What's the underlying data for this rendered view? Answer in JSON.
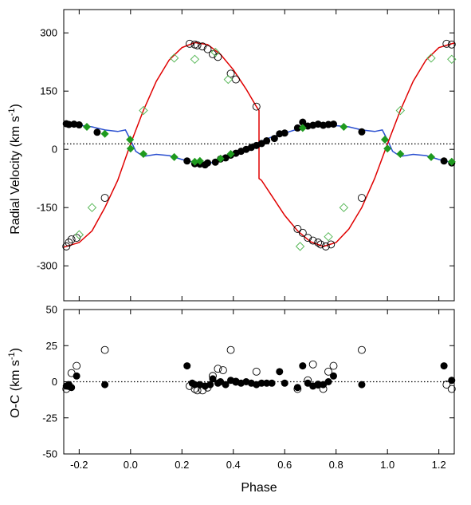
{
  "chart_data": [
    {
      "type": "line",
      "panel": "top",
      "ylabel_main": "Radial Velocity (km s",
      "ylabel_sup": "-1",
      "ylabel_close": ")",
      "xlim": [
        -0.26,
        1.26
      ],
      "ylim": [
        -390,
        360
      ],
      "xticks": [
        -0.2,
        0.0,
        0.2,
        0.4,
        0.6,
        0.8,
        1.0,
        1.2
      ],
      "xtick_labels": [],
      "yticks": [
        -300,
        -150,
        0,
        150,
        300
      ],
      "ytick_labels": [
        "-300",
        "-150",
        "0",
        "150",
        "300"
      ],
      "systemic_velocity": 14,
      "grid": false,
      "colors": {
        "secondary_model": "#e00000",
        "primary_model": "#2a4fd0",
        "primary_obs": "#000000",
        "green_fill": "#1e9a1e",
        "green_open": "#58b858",
        "open_circle": "#000000"
      },
      "series": [
        {
          "role": "primary_model",
          "points": [
            [
              -0.26,
              62
            ],
            [
              -0.2,
              62
            ],
            [
              -0.15,
              58
            ],
            [
              -0.1,
              50
            ],
            [
              -0.05,
              46
            ],
            [
              -0.02,
              50
            ],
            [
              0.0,
              24
            ],
            [
              0.02,
              -5
            ],
            [
              0.05,
              -18
            ],
            [
              0.1,
              -13
            ],
            [
              0.15,
              -16
            ],
            [
              0.2,
              -26
            ],
            [
              0.25,
              -34
            ],
            [
              0.3,
              -37
            ],
            [
              0.35,
              -28
            ],
            [
              0.4,
              -13
            ],
            [
              0.45,
              2
            ],
            [
              0.5,
              18
            ],
            [
              0.55,
              32
            ],
            [
              0.6,
              42
            ],
            [
              0.65,
              52
            ],
            [
              0.7,
              58
            ],
            [
              0.75,
              60
            ],
            [
              0.8,
              61
            ],
            [
              0.85,
              58
            ],
            [
              0.9,
              50
            ],
            [
              0.95,
              46
            ],
            [
              0.98,
              50
            ],
            [
              1.0,
              24
            ],
            [
              1.02,
              -5
            ],
            [
              1.05,
              -18
            ],
            [
              1.1,
              -13
            ],
            [
              1.15,
              -16
            ],
            [
              1.2,
              -26
            ],
            [
              1.26,
              -36
            ]
          ]
        },
        {
          "role": "secondary_model",
          "points": [
            [
              -0.26,
              -252
            ],
            [
              -0.2,
              -240
            ],
            [
              -0.15,
              -210
            ],
            [
              -0.1,
              -150
            ],
            [
              -0.05,
              -80
            ],
            [
              0.0,
              14
            ],
            [
              0.05,
              100
            ],
            [
              0.1,
              175
            ],
            [
              0.15,
              230
            ],
            [
              0.2,
              262
            ],
            [
              0.25,
              275
            ],
            [
              0.3,
              270
            ],
            [
              0.35,
              245
            ],
            [
              0.4,
              205
            ],
            [
              0.45,
              155
            ],
            [
              0.49,
              110
            ],
            [
              0.5,
              100
            ],
            [
              0.5,
              -75
            ],
            [
              0.51,
              -80
            ],
            [
              0.55,
              -120
            ],
            [
              0.6,
              -170
            ],
            [
              0.65,
              -210
            ],
            [
              0.7,
              -238
            ],
            [
              0.75,
              -250
            ],
            [
              0.8,
              -240
            ],
            [
              0.85,
              -205
            ],
            [
              0.9,
              -150
            ],
            [
              0.95,
              -75
            ],
            [
              1.0,
              14
            ],
            [
              1.05,
              100
            ],
            [
              1.1,
              175
            ],
            [
              1.15,
              230
            ],
            [
              1.2,
              262
            ],
            [
              1.26,
              274
            ]
          ]
        },
        {
          "role": "primary_obs",
          "points": [
            [
              -0.25,
              66
            ],
            [
              -0.24,
              64
            ],
            [
              -0.22,
              65
            ],
            [
              -0.2,
              63
            ],
            [
              -0.13,
              44
            ],
            [
              0.22,
              -30
            ],
            [
              0.25,
              -37
            ],
            [
              0.27,
              -38
            ],
            [
              0.29,
              -40
            ],
            [
              0.3,
              -35
            ],
            [
              0.33,
              -33
            ],
            [
              0.35,
              -25
            ],
            [
              0.37,
              -22
            ],
            [
              0.39,
              -15
            ],
            [
              0.41,
              -10
            ],
            [
              0.43,
              -5
            ],
            [
              0.45,
              0
            ],
            [
              0.47,
              5
            ],
            [
              0.49,
              10
            ],
            [
              0.51,
              15
            ],
            [
              0.53,
              22
            ],
            [
              0.56,
              28
            ],
            [
              0.58,
              40
            ],
            [
              0.6,
              42
            ],
            [
              0.65,
              55
            ],
            [
              0.67,
              70
            ],
            [
              0.69,
              60
            ],
            [
              0.71,
              62
            ],
            [
              0.73,
              65
            ],
            [
              0.75,
              62
            ],
            [
              0.77,
              64
            ],
            [
              0.79,
              65
            ],
            [
              0.9,
              45
            ],
            [
              1.22,
              -30
            ],
            [
              1.25,
              -35
            ]
          ]
        },
        {
          "role": "secondary_obs",
          "points": [
            [
              -0.25,
              -250
            ],
            [
              -0.24,
              -240
            ],
            [
              -0.23,
              -232
            ],
            [
              -0.21,
              -228
            ],
            [
              -0.1,
              -125
            ],
            [
              0.23,
              272
            ],
            [
              0.25,
              270
            ],
            [
              0.26,
              268
            ],
            [
              0.28,
              265
            ],
            [
              0.3,
              258
            ],
            [
              0.32,
              245
            ],
            [
              0.34,
              238
            ],
            [
              0.39,
              195
            ],
            [
              0.41,
              180
            ],
            [
              0.49,
              110
            ],
            [
              0.65,
              -205
            ],
            [
              0.67,
              -215
            ],
            [
              0.69,
              -228
            ],
            [
              0.71,
              -235
            ],
            [
              0.73,
              -240
            ],
            [
              0.74,
              -245
            ],
            [
              0.76,
              -250
            ],
            [
              0.78,
              -245
            ],
            [
              0.9,
              -125
            ],
            [
              1.23,
              272
            ],
            [
              1.25,
              270
            ]
          ]
        },
        {
          "role": "green_filled",
          "points": [
            [
              -0.17,
              58
            ],
            [
              -0.1,
              40
            ],
            [
              -0.002,
              25
            ],
            [
              0.0,
              2
            ],
            [
              0.05,
              -12
            ],
            [
              0.17,
              -20
            ],
            [
              0.25,
              -32
            ],
            [
              0.27,
              -30
            ],
            [
              0.35,
              -24
            ],
            [
              0.39,
              -12
            ],
            [
              0.67,
              55
            ],
            [
              0.83,
              58
            ],
            [
              0.99,
              25
            ],
            [
              1.0,
              2
            ],
            [
              1.05,
              -12
            ],
            [
              1.17,
              -20
            ],
            [
              1.25,
              -32
            ]
          ]
        },
        {
          "role": "green_open",
          "points": [
            [
              -0.2,
              -220
            ],
            [
              -0.15,
              -150
            ],
            [
              0.05,
              100
            ],
            [
              0.17,
              235
            ],
            [
              0.25,
              232
            ],
            [
              0.33,
              250
            ],
            [
              0.38,
              180
            ],
            [
              0.66,
              -250
            ],
            [
              0.77,
              -225
            ],
            [
              0.83,
              -150
            ],
            [
              1.05,
              100
            ],
            [
              1.17,
              235
            ],
            [
              1.25,
              232
            ]
          ]
        }
      ]
    },
    {
      "type": "scatter",
      "panel": "bottom",
      "xlabel": "Phase",
      "ylabel_main": "O-C  (km s",
      "ylabel_sup": "-1",
      "ylabel_close": ")",
      "xlim": [
        -0.26,
        1.26
      ],
      "ylim": [
        -50,
        50
      ],
      "xticks": [
        -0.2,
        0.0,
        0.2,
        0.4,
        0.6,
        0.8,
        1.0,
        1.2
      ],
      "xtick_labels": [
        "-0.2",
        "0.0",
        "0.2",
        "0.4",
        "0.6",
        "0.8",
        "1.0",
        "1.2"
      ],
      "yticks": [
        -50,
        -25,
        0,
        25,
        50
      ],
      "ytick_labels": [
        "-50",
        "-25",
        "0",
        "25",
        "50"
      ],
      "zero_line": 0,
      "grid": false,
      "series": [
        {
          "role": "primary_residuals",
          "points": [
            [
              -0.25,
              -3
            ],
            [
              -0.24,
              -2
            ],
            [
              -0.23,
              -4
            ],
            [
              -0.21,
              4
            ],
            [
              -0.1,
              -2
            ],
            [
              0.22,
              11
            ],
            [
              0.24,
              -1
            ],
            [
              0.25,
              -2
            ],
            [
              0.27,
              -2
            ],
            [
              0.29,
              -3
            ],
            [
              0.31,
              -2
            ],
            [
              0.32,
              2
            ],
            [
              0.34,
              -1
            ],
            [
              0.35,
              0
            ],
            [
              0.37,
              -2
            ],
            [
              0.39,
              1
            ],
            [
              0.41,
              0
            ],
            [
              0.43,
              -1
            ],
            [
              0.45,
              0
            ],
            [
              0.47,
              -1
            ],
            [
              0.49,
              -2
            ],
            [
              0.51,
              -1
            ],
            [
              0.53,
              -1
            ],
            [
              0.55,
              -1
            ],
            [
              0.58,
              7
            ],
            [
              0.6,
              -1
            ],
            [
              0.65,
              -4
            ],
            [
              0.67,
              11
            ],
            [
              0.69,
              -1
            ],
            [
              0.71,
              -3
            ],
            [
              0.73,
              -2
            ],
            [
              0.75,
              -2
            ],
            [
              0.77,
              0
            ],
            [
              0.79,
              4
            ],
            [
              0.9,
              -2
            ],
            [
              1.22,
              11
            ],
            [
              1.25,
              1
            ]
          ]
        },
        {
          "role": "secondary_residuals",
          "points": [
            [
              -0.25,
              -5
            ],
            [
              -0.24,
              -3
            ],
            [
              -0.23,
              6
            ],
            [
              -0.21,
              11
            ],
            [
              -0.1,
              22
            ],
            [
              0.23,
              -3
            ],
            [
              0.25,
              -5
            ],
            [
              0.26,
              -6
            ],
            [
              0.28,
              -6
            ],
            [
              0.3,
              -4
            ],
            [
              0.32,
              4
            ],
            [
              0.34,
              9
            ],
            [
              0.36,
              8
            ],
            [
              0.39,
              22
            ],
            [
              0.41,
              0
            ],
            [
              0.49,
              7
            ],
            [
              0.65,
              -5
            ],
            [
              0.69,
              1
            ],
            [
              0.71,
              12
            ],
            [
              0.73,
              -2
            ],
            [
              0.75,
              -5
            ],
            [
              0.77,
              7
            ],
            [
              0.79,
              11
            ],
            [
              0.9,
              22
            ],
            [
              1.23,
              -2
            ],
            [
              1.25,
              -5
            ]
          ]
        }
      ]
    }
  ]
}
